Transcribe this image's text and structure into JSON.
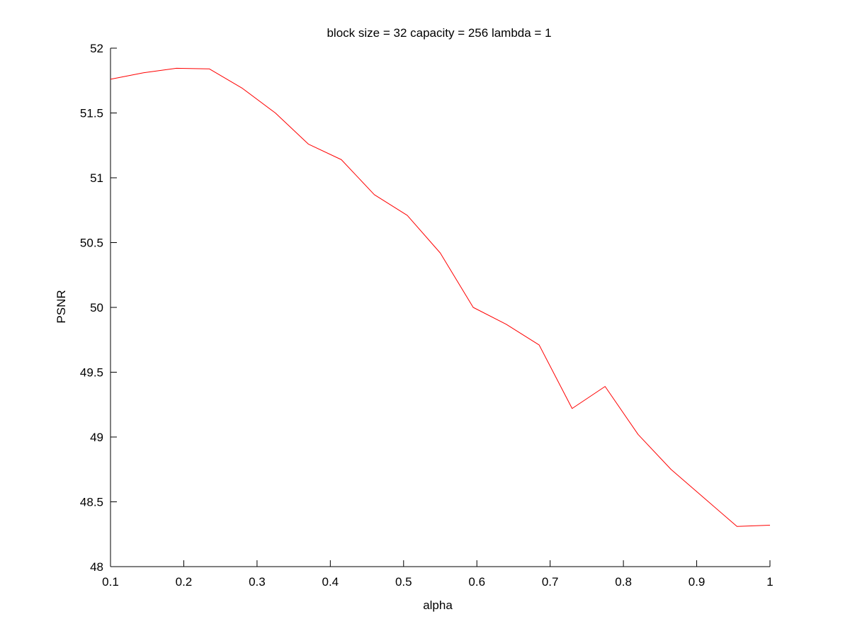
{
  "chart_data": {
    "type": "line",
    "title": "block size = 32  capacity = 256  lambda = 1",
    "xlabel": "alpha",
    "ylabel": "PSNR",
    "xlim": [
      0.1,
      1
    ],
    "ylim": [
      48,
      52
    ],
    "xticks": [
      0.1,
      0.2,
      0.3,
      0.4,
      0.5,
      0.6,
      0.7,
      0.8,
      0.9,
      1
    ],
    "xtick_labels": [
      "0.1",
      "0.2",
      "0.3",
      "0.4",
      "0.5",
      "0.6",
      "0.7",
      "0.8",
      "0.9",
      "1"
    ],
    "yticks": [
      48,
      48.5,
      49,
      49.5,
      50,
      50.5,
      51,
      51.5,
      52
    ],
    "ytick_labels": [
      "48",
      "48.5",
      "49",
      "49.5",
      "50",
      "50.5",
      "51",
      "51.5",
      "52"
    ],
    "grid": false,
    "legend": false,
    "series": [
      {
        "color": "#ff0000",
        "x": [
          0.1,
          0.145,
          0.19,
          0.235,
          0.28,
          0.325,
          0.37,
          0.415,
          0.46,
          0.505,
          0.55,
          0.595,
          0.64,
          0.685,
          0.73,
          0.775,
          0.82,
          0.865,
          0.91,
          0.955,
          1.0
        ],
        "y": [
          51.76,
          51.81,
          51.845,
          51.84,
          51.69,
          51.5,
          51.26,
          51.14,
          50.87,
          50.71,
          50.42,
          50.0,
          49.87,
          49.71,
          49.22,
          49.39,
          49.02,
          48.75,
          48.53,
          48.31,
          48.32
        ]
      }
    ]
  }
}
